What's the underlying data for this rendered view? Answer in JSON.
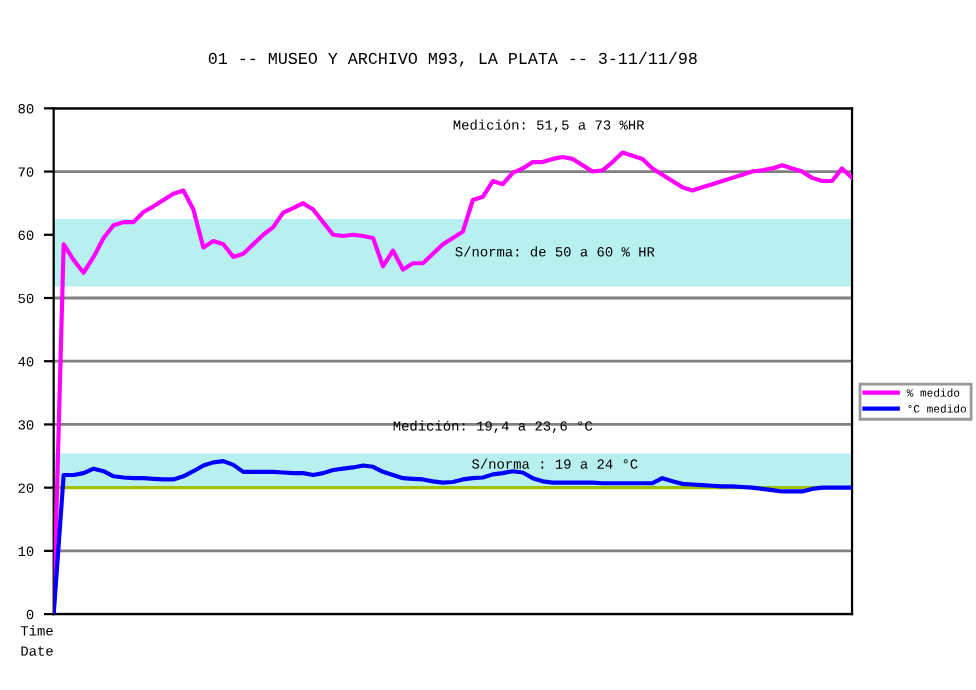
{
  "chart_data": {
    "type": "line",
    "title": "01 -- MUSEO Y ARCHIVO M93, LA PLATA -- 3-11/11/98",
    "categories": [
      null,
      null,
      null,
      null,
      null,
      null,
      null,
      null,
      null,
      null,
      null,
      null,
      null,
      null,
      null,
      null,
      null,
      null,
      null,
      null,
      null,
      null,
      null,
      null,
      null,
      null,
      null,
      null,
      null,
      null,
      null,
      null,
      null,
      null,
      null,
      null,
      null,
      null,
      null,
      null,
      null,
      null,
      null,
      null,
      null,
      null,
      null,
      null,
      null,
      null,
      null,
      null,
      null,
      null,
      null,
      null,
      null,
      null,
      null,
      null,
      null,
      null,
      null,
      null,
      null,
      null,
      null,
      null,
      null,
      null,
      null,
      null,
      null,
      null,
      null,
      null,
      null,
      null,
      null,
      null,
      null
    ],
    "series": [
      {
        "name": "% medido",
        "color": "#ff00ff",
        "values": [
          0,
          58.5,
          56,
          54,
          56.5,
          59.5,
          61.5,
          62,
          62,
          63.6,
          64.5,
          65.5,
          66.5,
          67,
          64,
          58,
          59,
          58.5,
          56.5,
          57,
          58.5,
          60,
          61.2,
          63.5,
          64.2,
          65,
          64,
          62,
          60,
          59.8,
          60,
          59.8,
          59.5,
          55,
          57.5,
          54.5,
          55.5,
          55.5,
          57,
          58.5,
          59.5,
          60.5,
          65.5,
          66,
          68.5,
          68,
          69.8,
          70.5,
          71.5,
          71.5,
          72,
          72.3,
          72,
          71,
          70,
          70.2,
          71.5,
          73,
          72.5,
          72,
          70.5,
          69.5,
          68.5,
          67.5,
          67,
          67.5,
          68,
          68.5,
          69,
          69.5,
          70,
          70.2,
          70.5,
          71,
          70.5,
          70,
          69,
          68.5,
          68.5,
          70.5,
          69
        ]
      },
      {
        "name": "°C medido",
        "color": "#0000ff",
        "values": [
          0,
          22,
          22,
          22.3,
          23,
          22.6,
          21.8,
          21.6,
          21.5,
          21.5,
          21.4,
          21.3,
          21.3,
          21.8,
          22.6,
          23.5,
          24,
          24.2,
          23.6,
          22.5,
          22.5,
          22.5,
          22.5,
          22.4,
          22.3,
          22.3,
          22,
          22.3,
          22.8,
          23,
          23.2,
          23.5,
          23.3,
          22.5,
          22,
          21.5,
          21.4,
          21.3,
          21,
          20.8,
          20.9,
          21.3,
          21.5,
          21.6,
          22.1,
          22.3,
          22.6,
          22.4,
          21.5,
          21,
          20.8,
          20.8,
          20.8,
          20.8,
          20.8,
          20.7,
          20.7,
          20.7,
          20.7,
          20.7,
          20.7,
          21.5,
          21,
          20.6,
          20.5,
          20.4,
          20.3,
          20.2,
          20.2,
          20.1,
          20,
          19.8,
          19.6,
          19.4,
          19.4,
          19.4,
          19.8,
          20,
          20,
          20,
          20
        ]
      }
    ],
    "ylim": [
      0,
      80
    ],
    "yticks": [
      0,
      10,
      20,
      30,
      40,
      50,
      60,
      70,
      80
    ],
    "bands": [
      {
        "axis": "y",
        "from": 51.8,
        "to": 62.5,
        "label": "S/norma: de 50 a 60 % HR",
        "color": "#b8f0f0"
      },
      {
        "axis": "y",
        "from": 20,
        "to": 25.4,
        "label": "S/norma : 19 a 24 °C",
        "color": "#b8f0f0"
      }
    ],
    "ref_lines": [
      {
        "axis": "y",
        "value": 20,
        "color": "#a0c000"
      }
    ],
    "annotations": [
      "Medición: 51,5 a 73 %HR",
      "Medición: 19,4 a 23,6 °C",
      "Time",
      "Date"
    ],
    "grid": "y",
    "legend": "right",
    "tick_labels": "y"
  }
}
